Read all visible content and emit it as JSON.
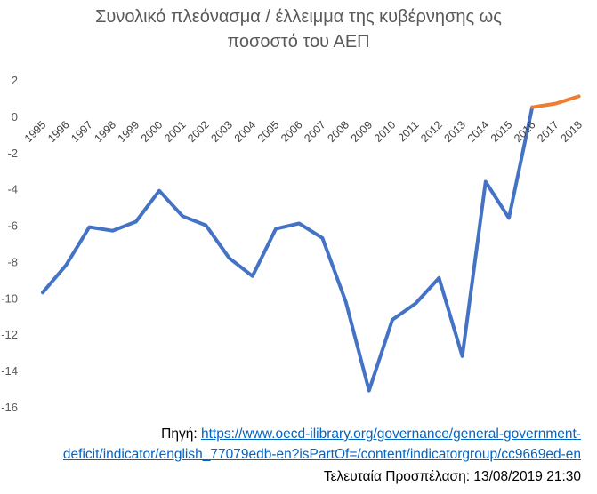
{
  "chart_data": {
    "type": "line",
    "title_line1": "Συνολικό πλεόνασμα / έλλειμμα της κυβέρνησης ως",
    "title_line2": "ποσοστό του ΑΕΠ",
    "xlabel": "",
    "ylabel": "",
    "categories": [
      "1995",
      "1996",
      "1997",
      "1998",
      "1999",
      "2000",
      "2001",
      "2002",
      "2003",
      "2004",
      "2005",
      "2006",
      "2007",
      "2008",
      "2009",
      "2010",
      "2011",
      "2012",
      "2013",
      "2014",
      "2015",
      "2016",
      "2017",
      "2018"
    ],
    "ylim": [
      -16,
      2
    ],
    "yticks": [
      "2",
      "0",
      "-2",
      "-4",
      "-6",
      "-8",
      "-10",
      "-12",
      "-14",
      "-16"
    ],
    "grid": false,
    "series": [
      {
        "color": "#4472c4",
        "values": [
          -9.7,
          -8.2,
          -6.1,
          -6.3,
          -5.8,
          -4.1,
          -5.5,
          -6.0,
          -7.8,
          -8.8,
          -6.2,
          -5.9,
          -6.7,
          -10.2,
          -15.1,
          -11.2,
          -10.3,
          -8.9,
          -13.2,
          -3.6,
          -5.6,
          0.5,
          null,
          null
        ]
      },
      {
        "color": "#ed7d31",
        "values": [
          null,
          null,
          null,
          null,
          null,
          null,
          null,
          null,
          null,
          null,
          null,
          null,
          null,
          null,
          null,
          null,
          null,
          null,
          null,
          null,
          null,
          0.5,
          0.7,
          1.1
        ]
      }
    ]
  },
  "source": {
    "label": "Πηγή: ",
    "url_line1": "https://www.oecd-ilibrary.org/governance/general-government-",
    "url_line2": "deficit/indicator/english_77079edb-en?isPartOf=/content/indicatorgroup/cc9669ed-en",
    "access": "Τελευταία Προσπέλαση: 13/08/2019 21:30"
  }
}
